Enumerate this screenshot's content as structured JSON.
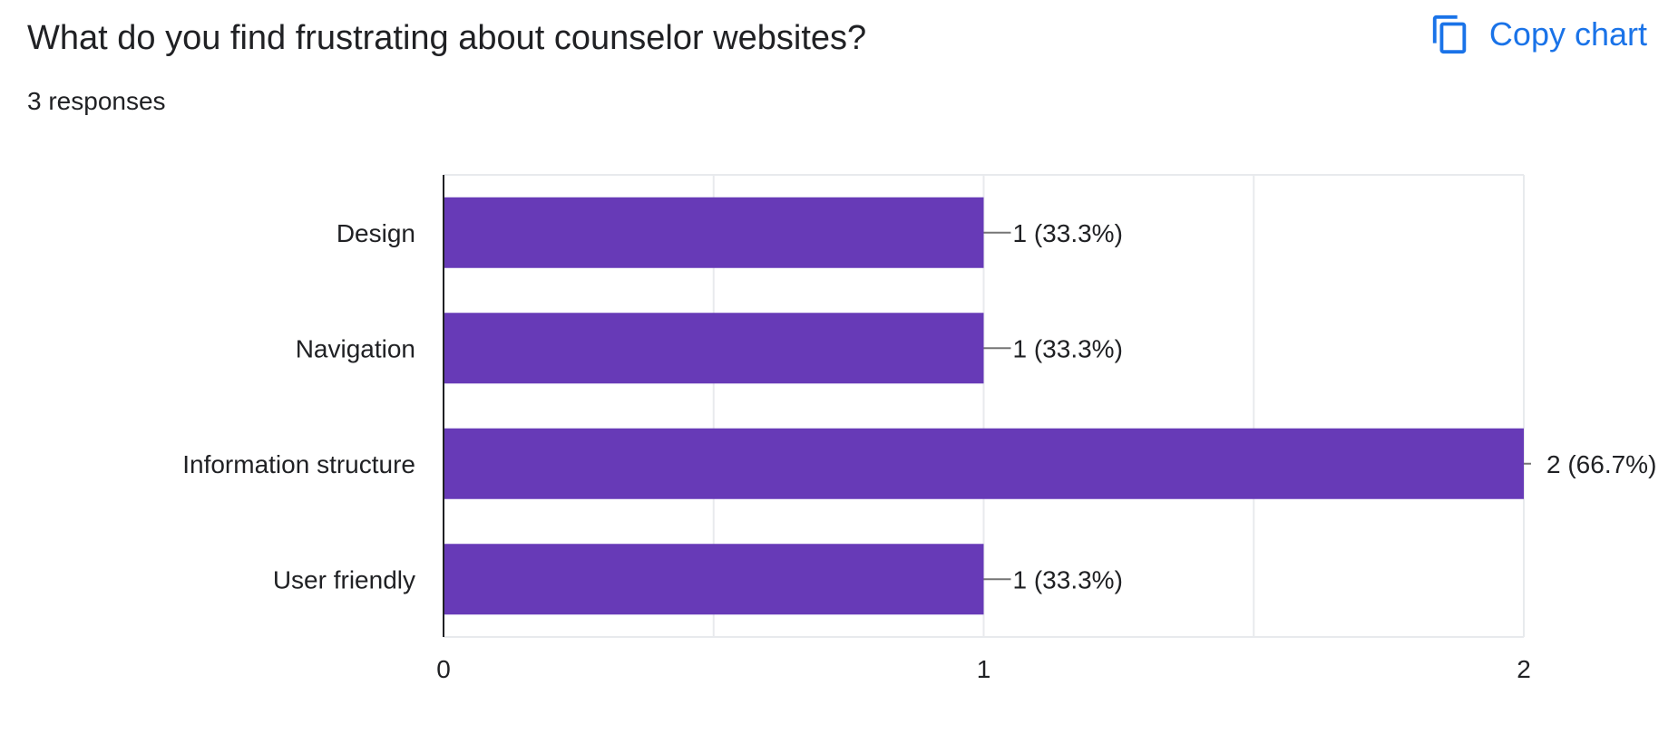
{
  "header": {
    "question": "What do you find frustrating about counselor websites?",
    "response_count": "3 responses"
  },
  "toolbar": {
    "copy_label": "Copy chart",
    "copy_icon": "copy-icon"
  },
  "colors": {
    "bar": "#673ab7",
    "accent": "#1a73e8",
    "grid": "#e8eaed",
    "axis": "#202124",
    "leader": "#757575"
  },
  "chart_data": {
    "type": "bar",
    "orientation": "horizontal",
    "title": "What do you find frustrating about counselor websites?",
    "subtitle": "3 responses",
    "categories": [
      "Design",
      "Navigation",
      "Information structure",
      "User friendly"
    ],
    "values": [
      1,
      1,
      2,
      1
    ],
    "data_labels": [
      "1 (33.3%)",
      "1 (33.3%)",
      "2 (66.7%)",
      "1 (33.3%)"
    ],
    "xlim": [
      0,
      2
    ],
    "x_ticks": [
      "0",
      "1",
      "2"
    ],
    "xlabel": "",
    "ylabel": "",
    "grid": true,
    "legend": "none"
  }
}
